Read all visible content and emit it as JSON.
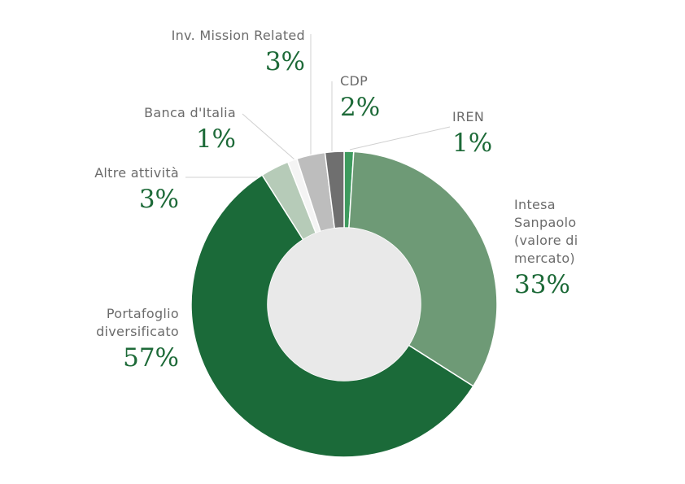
{
  "chart_data": {
    "type": "donut",
    "categories": [
      "IREN",
      "Intesa Sanpaolo (valore di mercato)",
      "Portafoglio diversificato",
      "Altre attività",
      "Banca d'Italia",
      "Inv. Mission Related",
      "CDP"
    ],
    "values": [
      1,
      33,
      57,
      3,
      1,
      3,
      2
    ],
    "value_labels": [
      "1%",
      "33%",
      "57%",
      "3%",
      "1%",
      "3%",
      "2%"
    ],
    "colors": [
      "#3e9a5e",
      "#6e9a76",
      "#1b6a39",
      "#b6cbb8",
      "#f4f4f4",
      "#bdbdbd",
      "#6f6f6f"
    ]
  }
}
